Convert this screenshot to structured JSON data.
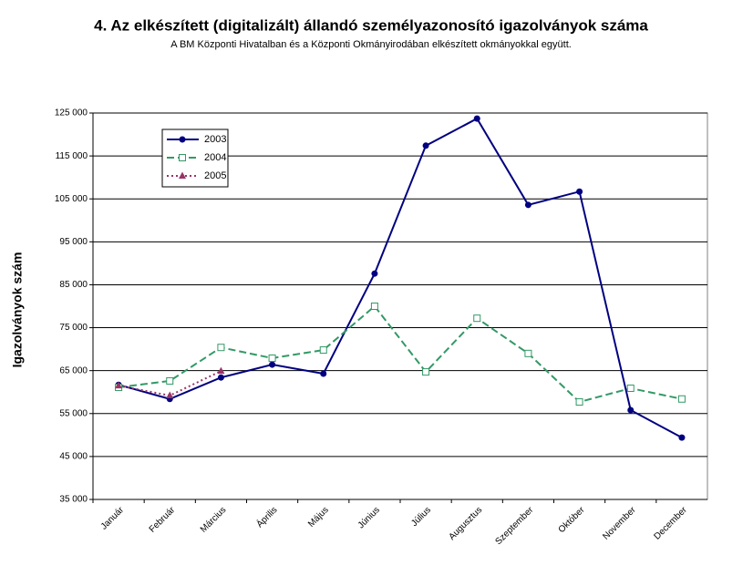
{
  "chart_data": {
    "type": "line",
    "title": "4. Az elkészített (digitalizált) állandó személyazonosító igazolványok száma",
    "subtitle": "A BM Központi Hivatalban és a Központi Okmányirodában elkészített okmányokkal együtt.",
    "y_label": "Igazolványok szám",
    "categories": [
      "Január",
      "Február",
      "Március",
      "Április",
      "Május",
      "Június",
      "Július",
      "Augusztus",
      "Szeptember",
      "Október",
      "November",
      "December"
    ],
    "series": [
      {
        "name": "2003",
        "color": "#000080",
        "marker": "circle",
        "dash": "solid",
        "values": [
          61700,
          58400,
          63400,
          66400,
          64300,
          87600,
          117400,
          123700,
          103600,
          106700,
          55800,
          49400
        ]
      },
      {
        "name": "2004",
        "color": "#339966",
        "marker": "square",
        "dash": "dashed",
        "values": [
          61100,
          62600,
          70400,
          67900,
          69800,
          80000,
          64700,
          77200,
          69000,
          57700,
          60900,
          58400
        ]
      },
      {
        "name": "2005",
        "color": "#993366",
        "marker": "triangle",
        "dash": "dotted",
        "values": [
          61500,
          59200,
          64900,
          null,
          null,
          null,
          null,
          null,
          null,
          null,
          null,
          null
        ]
      }
    ],
    "ylim": [
      35000,
      125000
    ],
    "yticks": [
      {
        "value": 35000,
        "label": "35 000"
      },
      {
        "value": 45000,
        "label": "45 000"
      },
      {
        "value": 55000,
        "label": "55 000"
      },
      {
        "value": 65000,
        "label": "65 000"
      },
      {
        "value": 75000,
        "label": "75 000"
      },
      {
        "value": 85000,
        "label": "85 000"
      },
      {
        "value": 95000,
        "label": "95 000"
      },
      {
        "value": 105000,
        "label": "105 000"
      },
      {
        "value": 115000,
        "label": "115 000"
      },
      {
        "value": 125000,
        "label": "125 000"
      }
    ],
    "grid": true,
    "legend": "upper left"
  }
}
